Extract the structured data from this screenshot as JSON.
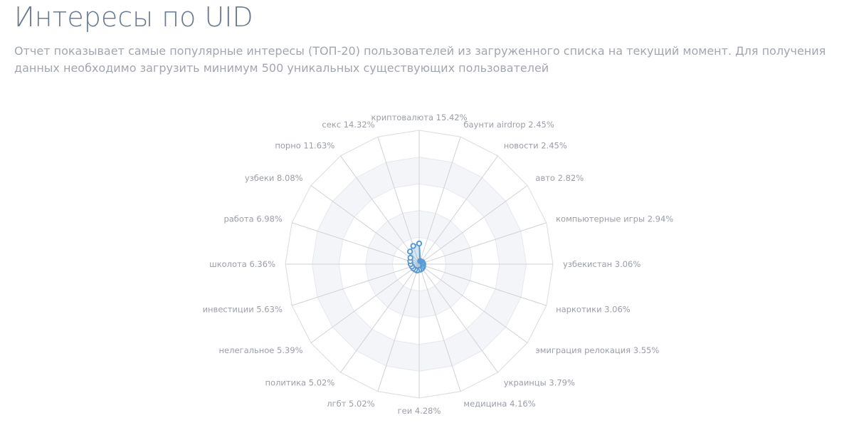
{
  "header": {
    "title": "Интересы по UID",
    "description": "Отчет показывает самые популярные интересы (ТОП-20) пользователей из загруженного списка на текущий момент. Для получения данных необходимо загрузить минимум 500 уникальных существующих пользователей"
  },
  "chart_data": {
    "type": "radar",
    "unit": "%",
    "categories": [
      "криптовалюта",
      "баунти airdrop",
      "новости",
      "авто",
      "компьютерные игры",
      "узбекистан",
      "наркотики",
      "эмиграция релокация",
      "украинцы",
      "медицина",
      "геи",
      "лгбт",
      "политика",
      "нелегальное",
      "инвестиции",
      "школота",
      "работа",
      "узбеки",
      "порно",
      "секс"
    ],
    "labels": [
      "криптовалюта 15.42%",
      "баунти airdrop 2.45%",
      "новости 2.45%",
      "авто 2.82%",
      "компьютерные игры 2.94%",
      "узбекистан 3.06%",
      "наркотики 3.06%",
      "эмиграция релокация 3.55%",
      "украинцы 3.79%",
      "медицина 4.16%",
      "геи 4.28%",
      "лгбт 5.02%",
      "политика 5.02%",
      "нелегальное 5.39%",
      "инвестиции 5.63%",
      "школота 6.36%",
      "работа 6.98%",
      "узбеки 8.08%",
      "порно 11.63%",
      "секс 14.32%"
    ],
    "values": [
      15.42,
      2.45,
      2.45,
      2.82,
      2.94,
      3.06,
      3.06,
      3.55,
      3.79,
      4.16,
      4.28,
      5.02,
      5.02,
      5.39,
      5.63,
      6.36,
      6.98,
      8.08,
      11.63,
      14.32
    ],
    "rmax": 100,
    "rings": 5,
    "colors": {
      "series": "#5b9bd5",
      "grid": "#cfd2d6",
      "band": "#f4f5f9",
      "label": "#9a9ea6"
    }
  }
}
